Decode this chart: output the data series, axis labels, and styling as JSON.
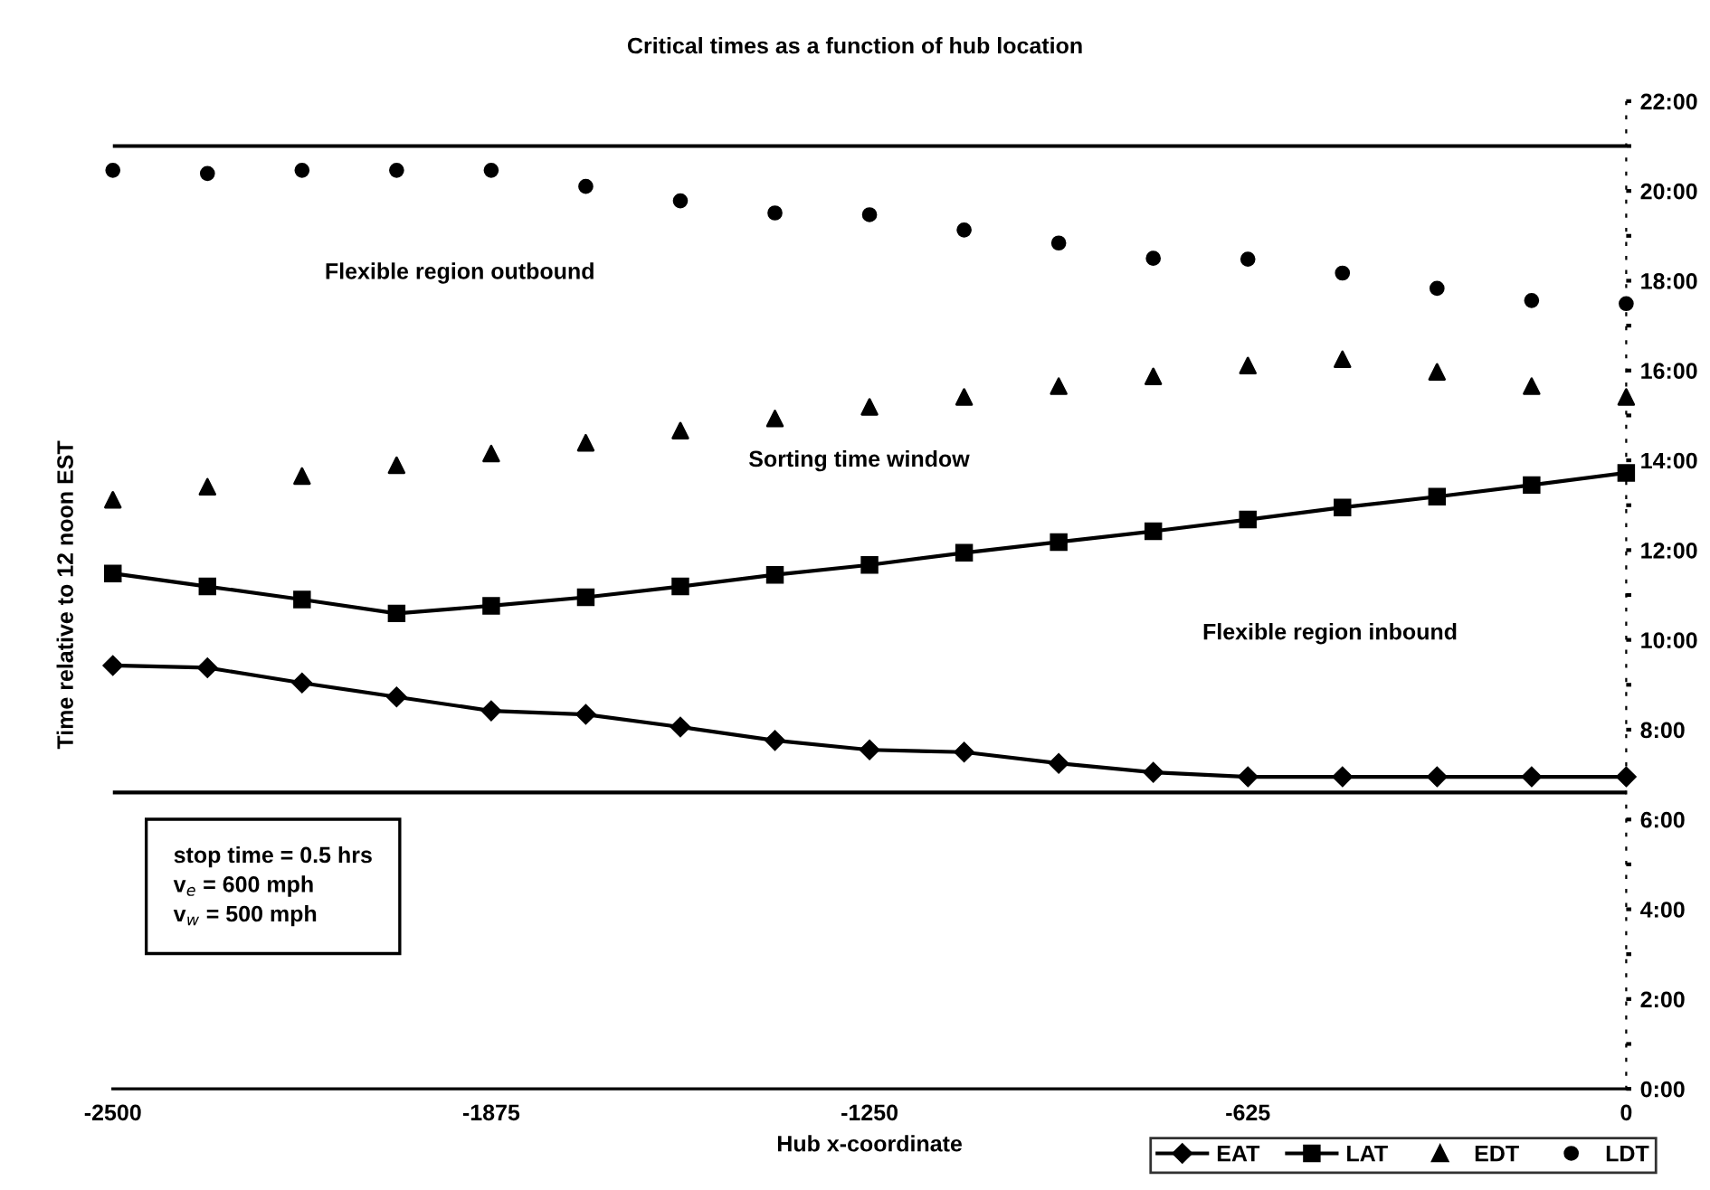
{
  "chart_data": {
    "type": "line",
    "title": "Critical times as a function of hub location",
    "xlabel": "Hub x-coordinate",
    "ylabel": "Time relative to 12 noon EST",
    "x": [
      -2500,
      -2343.75,
      -2187.5,
      -2031.25,
      -1875,
      -1718.75,
      -1562.5,
      -1406.25,
      -1250,
      -1093.75,
      -937.5,
      -781.25,
      -625,
      -468.75,
      -312.5,
      -156.25,
      0
    ],
    "series": [
      {
        "name": "EAT",
        "marker": "diamond",
        "color": "#000000",
        "values": [
          9.43,
          9.38,
          9.04,
          8.73,
          8.42,
          8.34,
          8.06,
          7.76,
          7.55,
          7.5,
          7.25,
          7.05,
          6.95,
          6.95,
          6.95,
          6.95,
          6.95
        ]
      },
      {
        "name": "LAT",
        "marker": "square",
        "color": "#000000",
        "values": [
          11.48,
          11.19,
          10.9,
          10.59,
          10.76,
          10.95,
          11.19,
          11.45,
          11.67,
          11.94,
          12.18,
          12.42,
          12.68,
          12.95,
          13.19,
          13.45,
          13.72
        ]
      },
      {
        "name": "EDT",
        "type": "scatter",
        "marker": "triangle",
        "color": "#000000",
        "values": [
          13.12,
          13.41,
          13.65,
          13.89,
          14.15,
          14.39,
          14.66,
          14.93,
          15.19,
          15.41,
          15.65,
          15.87,
          16.11,
          16.25,
          15.97,
          15.65,
          15.41
        ]
      },
      {
        "name": "LDT",
        "type": "scatter",
        "marker": "circle",
        "color": "#000000",
        "values": [
          20.46,
          20.39,
          20.46,
          20.46,
          20.46,
          20.1,
          19.78,
          19.51,
          19.47,
          19.13,
          18.84,
          18.5,
          18.48,
          18.17,
          17.83,
          17.56,
          17.49
        ]
      }
    ],
    "ref_lines": [
      {
        "axis": "y",
        "value": 21,
        "label": null,
        "color": "#000000"
      },
      {
        "axis": "y",
        "value": 6.6,
        "label": null,
        "color": "#000000"
      }
    ],
    "annotations": [
      "Flexible region outbound",
      "Sorting time window",
      "Flexible region inbound",
      "stop time = 0.5 hrs\nv$_{e}$ = 600 mph\nv$_{w}$ = 500 mph"
    ],
    "xlim": [
      -2500,
      0
    ],
    "xticks": [
      -2500,
      -1875,
      -1250,
      -625,
      0
    ],
    "ylim": [
      0,
      22
    ],
    "yticks": [
      {
        "value": 0,
        "label": "0:00"
      },
      {
        "value": 1,
        "label": null
      },
      {
        "value": 2,
        "label": "2:00"
      },
      {
        "value": 3,
        "label": null
      },
      {
        "value": 4,
        "label": "4:00"
      },
      {
        "value": 5,
        "label": null
      },
      {
        "value": 6,
        "label": "6:00"
      },
      {
        "value": 7,
        "label": null
      },
      {
        "value": 8,
        "label": "8:00"
      },
      {
        "value": 9,
        "label": null
      },
      {
        "value": 10,
        "label": "10:00"
      },
      {
        "value": 11,
        "label": null
      },
      {
        "value": 12,
        "label": "12:00"
      },
      {
        "value": 13,
        "label": null
      },
      {
        "value": 14,
        "label": "14:00"
      },
      {
        "value": 15,
        "label": null
      },
      {
        "value": 16,
        "label": "16:00"
      },
      {
        "value": 17,
        "label": null
      },
      {
        "value": 18,
        "label": "18:00"
      },
      {
        "value": 19,
        "label": null
      },
      {
        "value": 20,
        "label": "20:00"
      },
      {
        "value": 21,
        "label": null
      },
      {
        "value": 22,
        "label": "22:00"
      }
    ],
    "grid": false,
    "legend": "bottom right"
  }
}
